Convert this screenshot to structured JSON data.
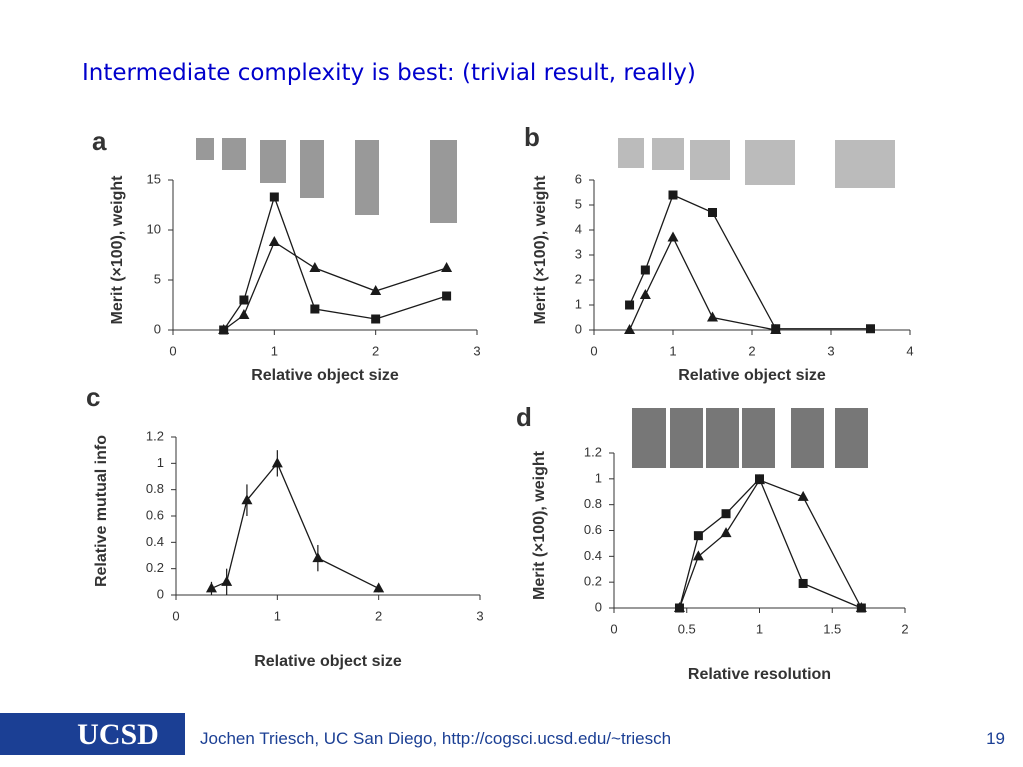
{
  "slide": {
    "title": "Intermediate complexity is best: (trivial result, really)",
    "logo": "UCSD",
    "footer": "Jochen Triesch, UC San Diego, http://cogsci.ucsd.edu/~triesch",
    "page": "19"
  },
  "chart_data": [
    {
      "type": "line",
      "panel": "a",
      "xlabel": "Relative object size",
      "ylabel": "Merit (×100), weight",
      "xlim": [
        0,
        3
      ],
      "ylim": [
        0,
        15
      ],
      "xticks": [
        0,
        1,
        2,
        3
      ],
      "yticks": [
        0,
        5,
        10,
        15
      ],
      "series": [
        {
          "marker": "square",
          "color": "#1a1a1a",
          "x": [
            0.5,
            0.7,
            1,
            1.4,
            2,
            2.7
          ],
          "values": [
            0,
            3,
            13.3,
            2.1,
            1.1,
            3.4
          ]
        },
        {
          "marker": "triangle",
          "color": "#1a1a1a",
          "x": [
            0.5,
            0.7,
            1,
            1.4,
            2,
            2.7
          ],
          "values": [
            0,
            1.5,
            8.8,
            6.2,
            3.9,
            6.2
          ]
        }
      ]
    },
    {
      "type": "line",
      "panel": "b",
      "xlabel": "Relative object size",
      "ylabel": "Merit (×100), weight",
      "xlim": [
        0,
        4
      ],
      "ylim": [
        0,
        6
      ],
      "xticks": [
        0,
        1,
        2,
        3,
        4
      ],
      "yticks": [
        0,
        1,
        2,
        3,
        4,
        5,
        6
      ],
      "series": [
        {
          "marker": "square",
          "color": "#1a1a1a",
          "x": [
            0.45,
            0.65,
            1,
            1.5,
            2.3,
            3.5
          ],
          "values": [
            1,
            2.4,
            5.4,
            4.7,
            0.05,
            0.05
          ]
        },
        {
          "marker": "triangle",
          "color": "#1a1a1a",
          "x": [
            0.45,
            0.65,
            1,
            1.5,
            2.3
          ],
          "values": [
            0,
            1.4,
            3.7,
            0.5,
            0
          ]
        }
      ]
    },
    {
      "type": "line",
      "panel": "c",
      "xlabel": "Relative object size",
      "ylabel": "Relative mutual info",
      "xlim": [
        0,
        3
      ],
      "ylim": [
        0,
        1.2
      ],
      "xticks": [
        0,
        1,
        2,
        3
      ],
      "yticks": [
        0,
        0.2,
        0.4,
        0.6,
        0.8,
        1,
        1.2
      ],
      "series": [
        {
          "marker": "triangle",
          "color": "#1a1a1a",
          "x": [
            0.35,
            0.5,
            0.7,
            1,
            1.4,
            2
          ],
          "values": [
            0.05,
            0.1,
            0.72,
            1,
            0.28,
            0.05
          ],
          "errors": [
            0.05,
            0.1,
            0.12,
            0.1,
            0.1,
            0.03
          ]
        }
      ]
    },
    {
      "type": "line",
      "panel": "d",
      "xlabel": "Relative resolution",
      "ylabel": "Merit (×100), weight",
      "xlim": [
        0,
        2
      ],
      "ylim": [
        0,
        1.2
      ],
      "xticks": [
        0,
        0.5,
        1,
        1.5,
        2
      ],
      "yticks": [
        0,
        0.2,
        0.4,
        0.6,
        0.8,
        1,
        1.2
      ],
      "series": [
        {
          "marker": "square",
          "color": "#1a1a1a",
          "x": [
            0.45,
            0.58,
            0.77,
            1,
            1.3,
            1.7
          ],
          "values": [
            0,
            0.56,
            0.73,
            1,
            0.19,
            0
          ]
        },
        {
          "marker": "triangle",
          "color": "#1a1a1a",
          "x": [
            0.45,
            0.58,
            0.77,
            1,
            1.3,
            1.7
          ],
          "values": [
            0,
            0.4,
            0.58,
            0.99,
            0.86,
            0
          ]
        }
      ]
    }
  ]
}
